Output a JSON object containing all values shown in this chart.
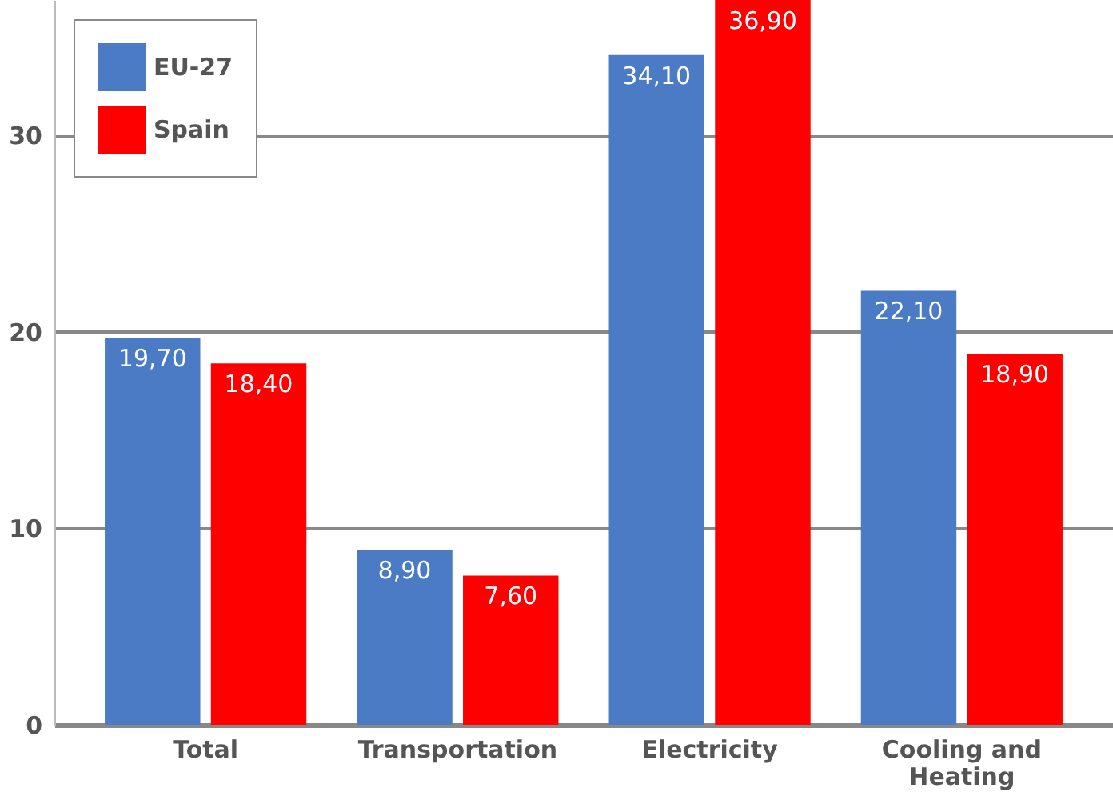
{
  "chart_data": {
    "type": "bar",
    "categories": [
      "Total",
      "Transportation",
      "Electricity",
      "Cooling and Heating"
    ],
    "series": [
      {
        "name": "EU-27",
        "color": "#4a7bc4",
        "values": [
          19.7,
          8.9,
          34.1,
          22.1
        ],
        "value_labels": [
          "19,70",
          "8,90",
          "34,10",
          "22,10"
        ]
      },
      {
        "name": "Spain",
        "color": "#ff0000",
        "values": [
          18.4,
          7.6,
          36.9,
          18.9
        ],
        "value_labels": [
          "18,40",
          "7,60",
          "36,90",
          "18,90"
        ]
      }
    ],
    "ylim": [
      0,
      36.9
    ],
    "yticks": [
      0,
      10,
      20,
      30
    ],
    "grid": "y",
    "legend": "top left"
  }
}
